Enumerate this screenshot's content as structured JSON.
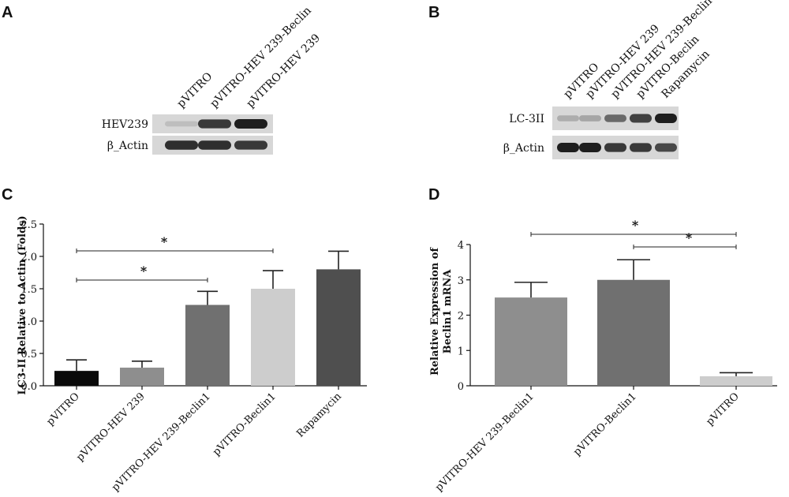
{
  "panels": {
    "A": {
      "letter": "A",
      "lanes": [
        "pVITRO",
        "pVITRO-HEV 239-Beclin",
        "pVITRO-HEV 239"
      ],
      "rows": [
        {
          "label": "HEV239",
          "bands": [
            0.05,
            0.85,
            1.0
          ]
        },
        {
          "label": "β_Actin",
          "bands": [
            0.9,
            0.9,
            0.85
          ]
        }
      ]
    },
    "B": {
      "letter": "B",
      "lanes": [
        "pVITRO",
        "pVITRO-HEV 239",
        "pVITRO-HEV 239-Beclin",
        "pVITRO-Beclin",
        "Rapamycin"
      ],
      "rows": [
        {
          "label": "LC-3II",
          "bands": [
            0.15,
            0.2,
            0.55,
            0.8,
            1.0
          ]
        },
        {
          "label": "β_Actin",
          "bands": [
            1.0,
            1.0,
            0.85,
            0.85,
            0.75
          ]
        }
      ]
    },
    "C": {
      "letter": "C"
    },
    "D": {
      "letter": "D"
    }
  },
  "colors": {
    "black": "#0a0a0a",
    "mid_gray": "#8e8e8e",
    "dark_gray": "#707070",
    "light_gray": "#cdcdcd",
    "charcoal": "#4f4f4f",
    "blot_bg": "#d7d7d7",
    "band": "#1a1a1a"
  },
  "chart_data": [
    {
      "panel": "C",
      "type": "bar",
      "categories": [
        "pVITRO",
        "pVITRO-HEV 239",
        "pVITRO-HEV 239-Beclin1",
        "pVITRO-Beclin1",
        "Rapamycin"
      ],
      "values": [
        0.23,
        0.28,
        1.25,
        1.5,
        1.8
      ],
      "errors": [
        0.17,
        0.1,
        0.21,
        0.28,
        0.28
      ],
      "bar_colors": [
        "#0a0a0a",
        "#8e8e8e",
        "#707070",
        "#cdcdcd",
        "#4f4f4f"
      ],
      "ylabel": "LC3-II Relative to Actin (Folds)",
      "ylim": [
        0,
        2.5
      ],
      "yticks": [
        "0.0",
        "0.5",
        "1.0",
        "1.5",
        "2.0",
        "2.5"
      ],
      "significance": [
        {
          "from": 0,
          "to": 2,
          "label": "*"
        },
        {
          "from": 0,
          "to": 3,
          "label": "*"
        }
      ],
      "grid": false
    },
    {
      "panel": "D",
      "type": "bar",
      "categories": [
        "pVITRO-HEV 239-Beclin1",
        "pVITRO-Beclin1",
        "pVITRO"
      ],
      "values": [
        2.5,
        3.0,
        0.27
      ],
      "errors": [
        0.43,
        0.57,
        0.1
      ],
      "bar_colors": [
        "#8e8e8e",
        "#707070",
        "#cdcdcd"
      ],
      "ylabel": [
        "Relative Expression of",
        "Beclin1 mRNA"
      ],
      "ylim": [
        0,
        4
      ],
      "yticks": [
        "0",
        "1",
        "2",
        "3",
        "4"
      ],
      "significance": [
        {
          "from": 0,
          "to": 2,
          "label": "*"
        },
        {
          "from": 1,
          "to": 2,
          "label": "*"
        }
      ],
      "grid": false
    }
  ]
}
